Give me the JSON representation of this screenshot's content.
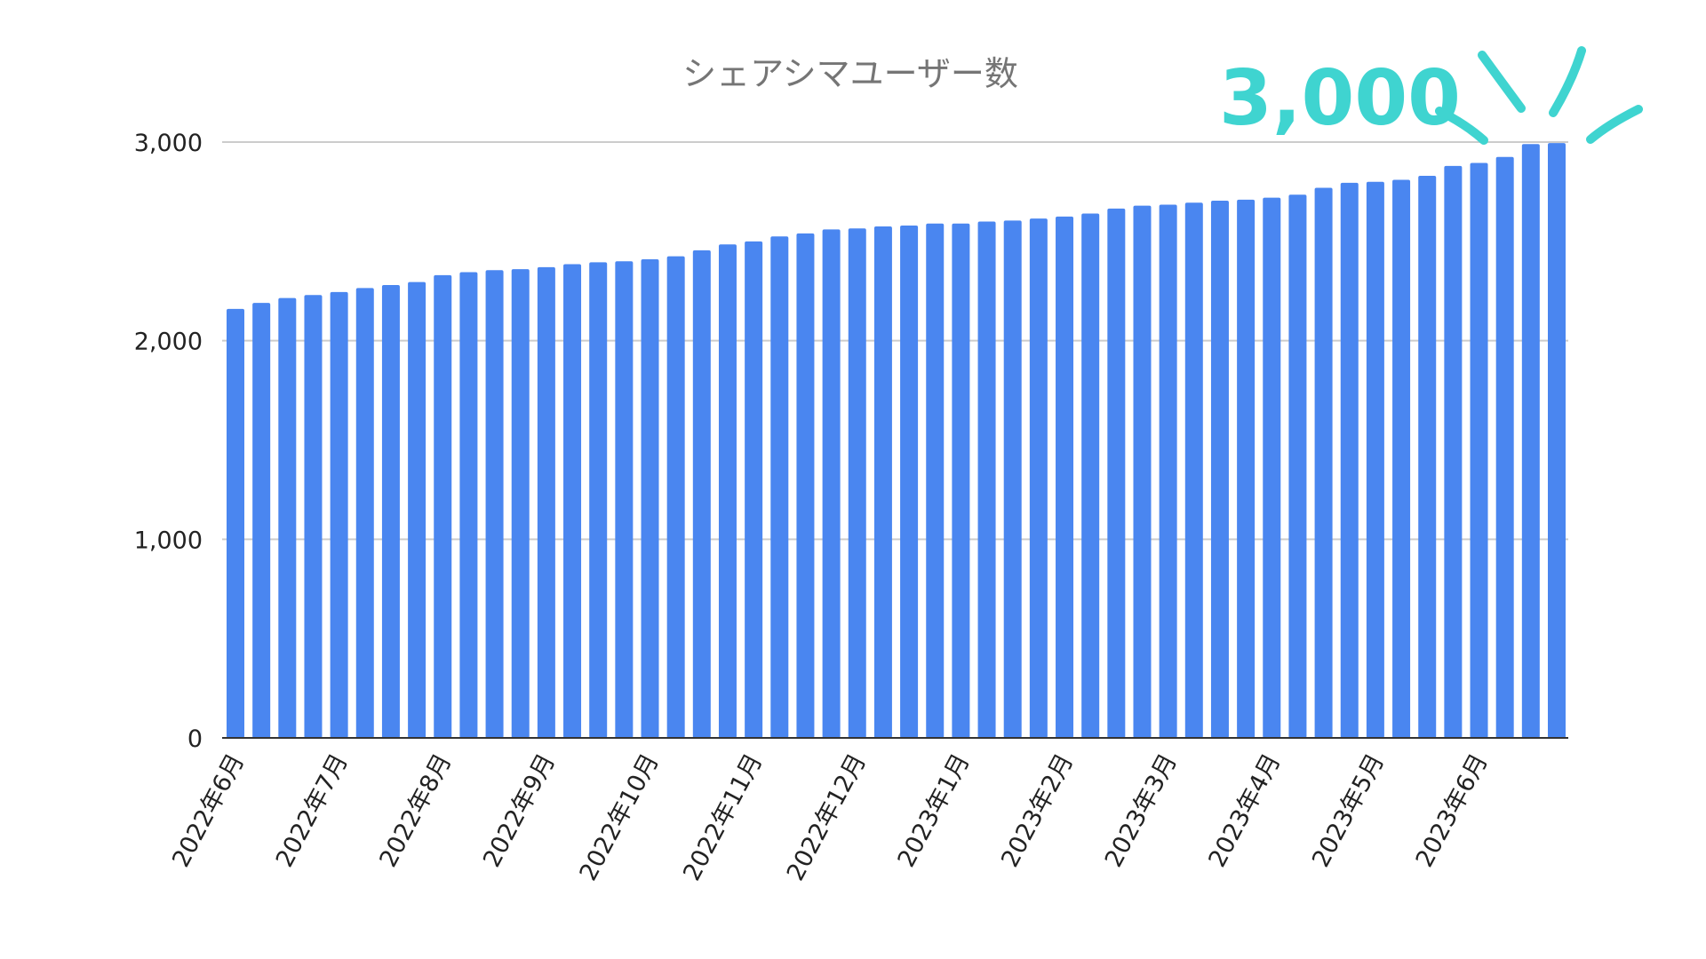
{
  "chart_data": {
    "type": "bar",
    "title": "シェアシマユーザー数",
    "xlabel": "",
    "ylabel": "",
    "ylim": [
      0,
      3000
    ],
    "y_ticks": [
      "0",
      "1,000",
      "2,000",
      "3,000"
    ],
    "y_tick_values": [
      0,
      1000,
      2000,
      3000
    ],
    "x_tick_labels": [
      "2022年6月",
      "2022年7月",
      "2022年8月",
      "2022年9月",
      "2022年10月",
      "2022年11月",
      "2022年12月",
      "2023年1月",
      "2023年2月",
      "2023年3月",
      "2023年4月",
      "2023年5月",
      "2023年6月"
    ],
    "x_tick_bar_index": [
      0,
      4,
      8,
      12,
      16,
      20,
      24,
      28,
      32,
      36,
      40,
      44,
      48
    ],
    "grid": true,
    "legend": "none",
    "bar_color": "#4a86f0",
    "values": [
      2160,
      2190,
      2215,
      2230,
      2245,
      2265,
      2280,
      2295,
      2330,
      2345,
      2355,
      2360,
      2370,
      2385,
      2395,
      2400,
      2410,
      2425,
      2455,
      2485,
      2500,
      2525,
      2540,
      2560,
      2565,
      2575,
      2580,
      2590,
      2590,
      2600,
      2605,
      2615,
      2625,
      2640,
      2665,
      2680,
      2685,
      2695,
      2705,
      2710,
      2720,
      2735,
      2770,
      2795,
      2800,
      2810,
      2830,
      2880,
      2895,
      2925,
      2990,
      2995
    ]
  },
  "callout": {
    "text": "3,000",
    "color": "#3fd4d0"
  }
}
